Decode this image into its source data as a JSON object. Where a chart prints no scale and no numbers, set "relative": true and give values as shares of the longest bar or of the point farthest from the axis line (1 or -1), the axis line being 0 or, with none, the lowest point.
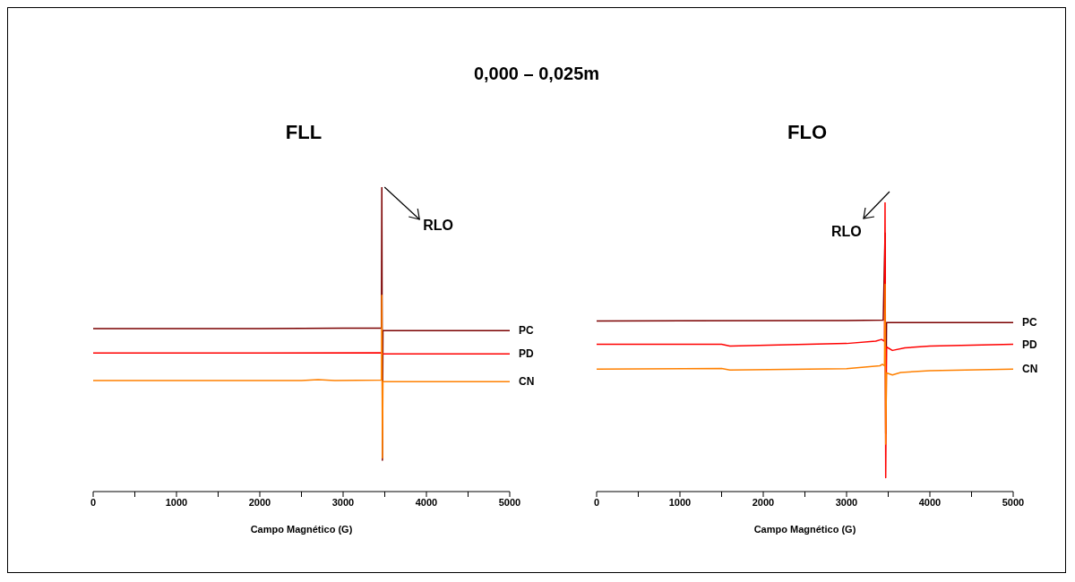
{
  "chart_data": [
    {
      "type": "line",
      "title": "0,000 – 0,025m",
      "subtitle": "FLL",
      "xlabel": "Campo Magnético (G)",
      "relative": true,
      "tick_labels": "x",
      "marker": "none",
      "xlim": [
        0,
        5000
      ],
      "xticks": [
        0,
        {
          "value": 500,
          "label": null
        },
        1000,
        {
          "value": 1500,
          "label": null
        },
        2000,
        {
          "value": 2500,
          "label": null
        },
        3000,
        {
          "value": 3500,
          "label": null
        },
        4000,
        {
          "value": 4500,
          "label": null
        },
        5000
      ],
      "annotations": [
        {
          "text": "RLO",
          "x": 3465,
          "y": 1
        }
      ],
      "series": [
        {
          "name": "PC",
          "color": "#7b0000",
          "x": [
            0,
            1000,
            2000,
            3000,
            3460,
            3465,
            3472,
            3478,
            4000,
            5000
          ],
          "values": [
            0.535,
            0.535,
            0.535,
            0.537,
            0.537,
            1,
            0.103,
            0.529,
            0.529,
            0.529
          ]
        },
        {
          "name": "PD",
          "color": "#ff0000",
          "x": [
            0,
            2000,
            3460,
            3478,
            5000
          ],
          "values": [
            0.455,
            0.455,
            0.456,
            0.452,
            0.452
          ]
        },
        {
          "name": "CN",
          "color": "#ff8000",
          "x": [
            0,
            2500,
            2700,
            2900,
            3460,
            3465,
            3472,
            3478,
            5000
          ],
          "values": [
            0.365,
            0.365,
            0.368,
            0.365,
            0.366,
            0.645,
            0.11,
            0.361,
            0.361
          ]
        }
      ]
    },
    {
      "type": "line",
      "subtitle": "FLO",
      "xlabel": "Campo Magnético (G)",
      "relative": true,
      "tick_labels": "x",
      "marker": "none",
      "xlim": [
        0,
        5000
      ],
      "xticks": [
        0,
        {
          "value": 500,
          "label": null
        },
        1000,
        {
          "value": 1500,
          "label": null
        },
        2000,
        {
          "value": 2500,
          "label": null
        },
        3000,
        {
          "value": 3500,
          "label": null
        },
        4000,
        {
          "value": 4500,
          "label": null
        },
        5000
      ],
      "annotations": [
        {
          "text": "RLO",
          "x": 3462,
          "y": 1
        }
      ],
      "series": [
        {
          "name": "PC",
          "color": "#7b0000",
          "x": [
            0,
            3000,
            3440,
            3462,
            3470,
            3480,
            5000
          ],
          "values": [
            0.59,
            0.591,
            0.593,
            0.894,
            0.2,
            0.584,
            0.584
          ]
        },
        {
          "name": "PD",
          "color": "#ff0000",
          "x": [
            0,
            1500,
            1600,
            3000,
            3350,
            3420,
            3455,
            3462,
            3470,
            3480,
            3550,
            3700,
            4000,
            5000
          ],
          "values": [
            0.509,
            0.509,
            0.503,
            0.512,
            0.52,
            0.526,
            0.52,
            1,
            0.048,
            0.5,
            0.488,
            0.497,
            0.503,
            0.509
          ]
        },
        {
          "name": "CN",
          "color": "#ff8000",
          "x": [
            0,
            1500,
            1600,
            3000,
            3400,
            3430,
            3455,
            3462,
            3470,
            3480,
            3550,
            3650,
            4000,
            5000
          ],
          "values": [
            0.423,
            0.426,
            0.42,
            0.425,
            0.435,
            0.44,
            0.435,
            0.717,
            0.164,
            0.41,
            0.403,
            0.412,
            0.418,
            0.423
          ]
        }
      ]
    }
  ]
}
